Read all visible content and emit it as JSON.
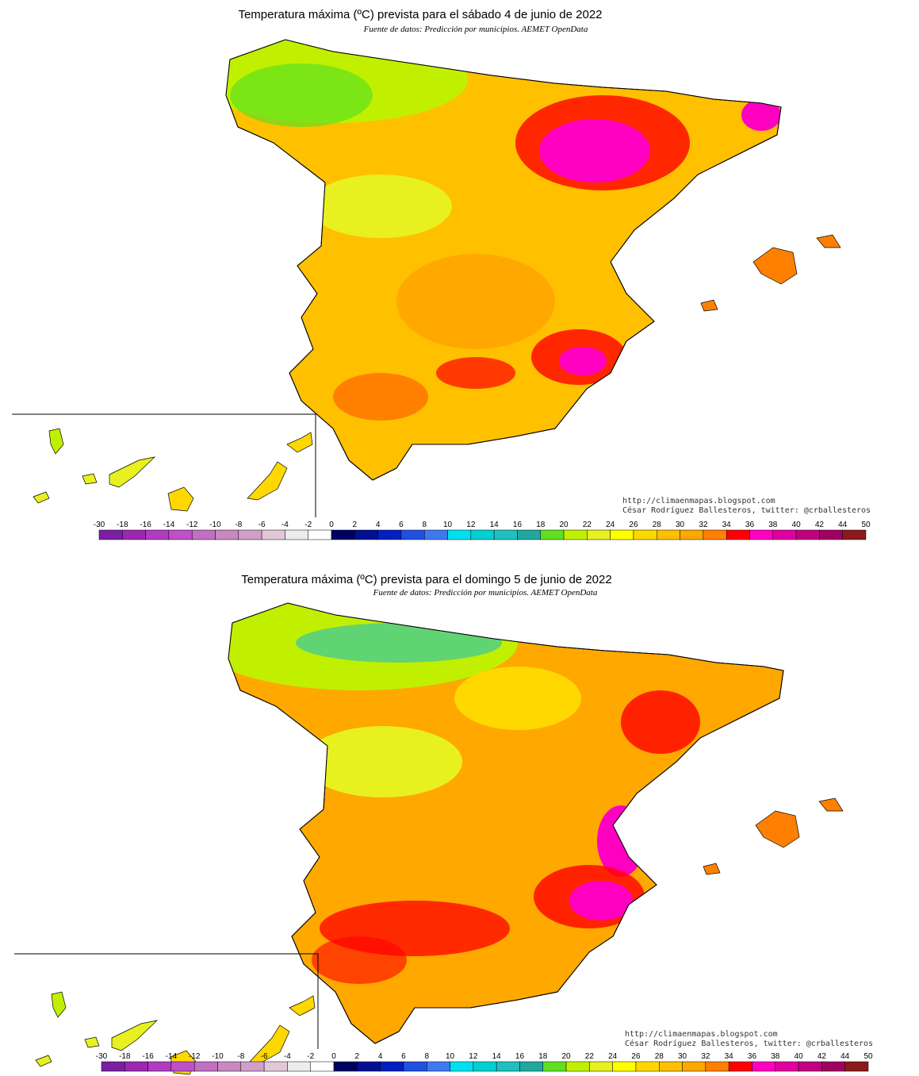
{
  "panels": [
    {
      "title": "Temperatura máxima (ºC) prevista para el sábado 4 de junio de 2022",
      "source": "Fuente de datos: Predicción por municipios. AEMET OpenData",
      "credit_url": "http://climaenmapas.blogspot.com",
      "credit_author": "César Rodríguez Ballesteros, twitter: @crballesteros"
    },
    {
      "title": "Temperatura máxima (ºC) prevista para el domingo 5 de junio de 2022",
      "source": "Fuente de datos: Predicción por municipios. AEMET OpenData",
      "credit_url": "http://climaenmapas.blogspot.com",
      "credit_author": "César Rodríguez Ballesteros, twitter: @crballesteros"
    }
  ],
  "legend": {
    "labels": [
      -30,
      -18,
      -16,
      -14,
      -12,
      -10,
      -8,
      -6,
      -4,
      -2,
      0,
      2,
      4,
      6,
      8,
      10,
      12,
      14,
      16,
      18,
      20,
      22,
      24,
      26,
      28,
      30,
      32,
      34,
      36,
      38,
      40,
      42,
      44,
      50
    ],
    "colors": [
      "#7b1fa2",
      "#9c27b0",
      "#b03cc0",
      "#c050c8",
      "#c070c0",
      "#c888c0",
      "#d0a0c8",
      "#e0c8d8",
      "#ececec",
      "#ffffff",
      "#000060",
      "#001090",
      "#0020c0",
      "#2050e0",
      "#4078f0",
      "#00e0f0",
      "#00d0d0",
      "#20c0c0",
      "#20a8a0",
      "#60e020",
      "#c0f000",
      "#e8f020",
      "#ffff00",
      "#ffd800",
      "#ffc000",
      "#ffa800",
      "#ff8000",
      "#ff0000",
      "#ff00c0",
      "#e000a0",
      "#c00080",
      "#a00060",
      "#8b1a1a"
    ]
  }
}
